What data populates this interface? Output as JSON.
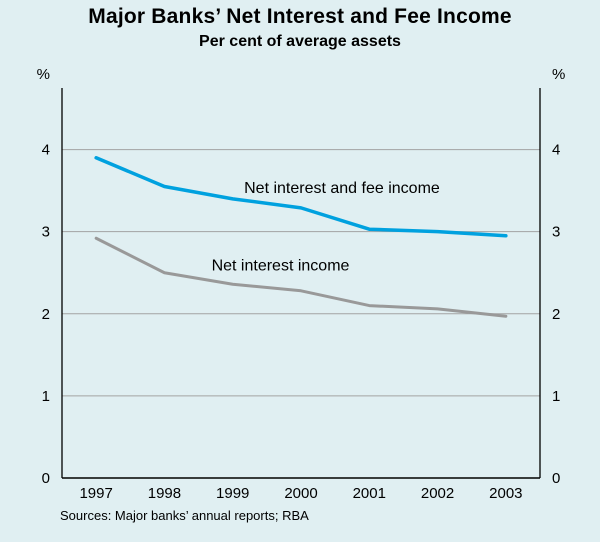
{
  "title": "Major Banks’ Net Interest and Fee Income",
  "subtitle": "Per cent of average assets",
  "source": "Sources: Major banks’ annual reports; RBA",
  "chart_data": {
    "type": "line",
    "title": "Major Banks’ Net Interest and Fee Income",
    "subtitle": "Per cent of average assets",
    "unit_label": "%",
    "x": [
      1997,
      1998,
      1999,
      2000,
      2001,
      2002,
      2003
    ],
    "series": [
      {
        "name": "Net interest and fee income",
        "color": "#00a1df",
        "values": [
          3.9,
          3.55,
          3.4,
          3.29,
          3.03,
          3.0,
          2.95
        ]
      },
      {
        "name": "Net interest income",
        "color": "#999999",
        "values": [
          2.92,
          2.5,
          2.36,
          2.28,
          2.1,
          2.06,
          1.97
        ]
      }
    ],
    "annotations": [
      {
        "text": "Net interest and fee income",
        "x": 2000.6,
        "y": 3.47
      },
      {
        "text": "Net interest income",
        "x": 1999.7,
        "y": 2.53
      }
    ],
    "yticks": [
      0,
      1,
      2,
      3,
      4
    ],
    "ylim": [
      0,
      4.75
    ],
    "grid": true,
    "grid_color": "#a3a3a3",
    "axis_color": "#000000",
    "background": "#e0eff2",
    "legend_position": "inline-annotations"
  }
}
